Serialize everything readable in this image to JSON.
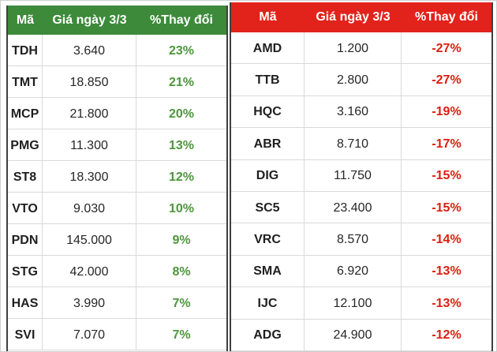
{
  "chart_data": [
    {
      "type": "table",
      "name": "top-gainers",
      "header": [
        "Mã",
        "Giá ngày 3/3",
        "%Thay đổi"
      ],
      "header_bg": "#3C8A3A",
      "change_color": "#4D963C",
      "rows": [
        {
          "ma": "TDH",
          "gia": "3.640",
          "change": "23%"
        },
        {
          "ma": "TMT",
          "gia": "18.850",
          "change": "21%"
        },
        {
          "ma": "MCP",
          "gia": "21.800",
          "change": "20%"
        },
        {
          "ma": "PMG",
          "gia": "11.300",
          "change": "13%"
        },
        {
          "ma": "ST8",
          "gia": "18.300",
          "change": "12%"
        },
        {
          "ma": "VTO",
          "gia": "9.030",
          "change": "10%"
        },
        {
          "ma": "PDN",
          "gia": "145.000",
          "change": "9%"
        },
        {
          "ma": "STG",
          "gia": "42.000",
          "change": "8%"
        },
        {
          "ma": "HAS",
          "gia": "3.990",
          "change": "7%"
        },
        {
          "ma": "SVI",
          "gia": "7.070",
          "change": "7%"
        }
      ]
    },
    {
      "type": "table",
      "name": "top-losers",
      "header": [
        "Mã",
        "Giá ngày 3/3",
        "%Thay đổi"
      ],
      "header_bg": "#E2231B",
      "change_color": "#D91F12",
      "rows": [
        {
          "ma": "AMD",
          "gia": "1.200",
          "change": "-27%"
        },
        {
          "ma": "TTB",
          "gia": "2.800",
          "change": "-27%"
        },
        {
          "ma": "HQC",
          "gia": "3.160",
          "change": "-19%"
        },
        {
          "ma": "ABR",
          "gia": "8.710",
          "change": "-17%"
        },
        {
          "ma": "DIG",
          "gia": "11.750",
          "change": "-15%"
        },
        {
          "ma": "SC5",
          "gia": "23.400",
          "change": "-15%"
        },
        {
          "ma": "VRC",
          "gia": "8.570",
          "change": "-14%"
        },
        {
          "ma": "SMA",
          "gia": "6.920",
          "change": "-13%"
        },
        {
          "ma": "IJC",
          "gia": "12.100",
          "change": "-13%"
        },
        {
          "ma": "ADG",
          "gia": "24.900",
          "change": "-12%"
        }
      ]
    }
  ]
}
